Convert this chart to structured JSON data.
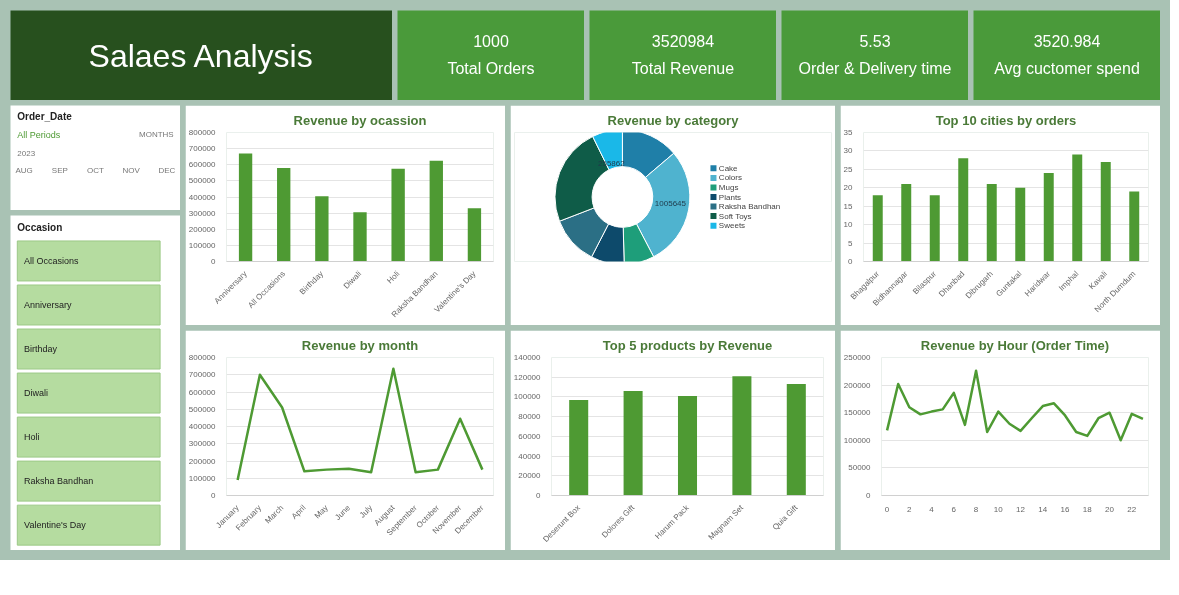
{
  "chart_data": [
    {
      "type": "other",
      "title": "Salaes Analysis"
    },
    {
      "type": "other",
      "title": "Total Orders",
      "annotations": [
        "1000"
      ]
    },
    {
      "type": "other",
      "title": "Total Revenue",
      "annotations": [
        "3520984"
      ]
    },
    {
      "type": "other",
      "title": "Order & Delivery time",
      "annotations": [
        "5.53"
      ]
    },
    {
      "type": "other",
      "title": "Avg cuctomer spend",
      "annotations": [
        "3520.984"
      ]
    },
    {
      "type": "other",
      "title": "Order_Date",
      "annotations": [
        "All Periods",
        "MONTHS",
        "2023",
        "AUG",
        "SEP",
        "OCT",
        "NOV",
        "DEC"
      ]
    },
    {
      "type": "other",
      "title": "Occasion",
      "annotations": [
        "All Occasions",
        "Anniversary",
        "Birthday",
        "Diwali",
        "Holi",
        "Raksha Bandhan",
        "Valentine's Day"
      ]
    },
    {
      "type": "bar",
      "title": "Revenue by ocassion",
      "categories": [
        "Anniversary",
        "All Occasions",
        "Birthday",
        "Diwali",
        "Holi",
        "Raksha Bandhan",
        "Valentine's Day"
      ],
      "values": [
        670000,
        580000,
        405000,
        305000,
        575000,
        625000,
        330000
      ],
      "color": "#4e9a33",
      "ylim": [
        0,
        800000
      ],
      "yticks": [
        0,
        100000,
        200000,
        300000,
        400000,
        500000,
        600000,
        700000,
        800000
      ],
      "grid": "y"
    },
    {
      "type": "donut",
      "title": "Revenue by category",
      "categories": [
        "Cake",
        "Colors",
        "Mugs",
        "Plants",
        "Raksha Bandhan",
        "Soft Toys",
        "Sweets"
      ],
      "values": [
        485000,
        1005645,
        255000,
        281000,
        408000,
        830000,
        255862
      ],
      "colors": [
        "#1f7fa8",
        "#4fb3cf",
        "#1e9e7a",
        "#0d4a6b",
        "#2b6f85",
        "#0f5c48",
        "#1ab8e8"
      ],
      "value_labels": [
        null,
        "1005645",
        null,
        null,
        null,
        null,
        "255862"
      ],
      "legend": "right"
    },
    {
      "type": "bar",
      "title": "Top 10 cities by orders",
      "categories": [
        "Bhagalpur",
        "Bidhannagar",
        "Bilaspur",
        "Dhanbad",
        "Dibrugarh",
        "Guntakal",
        "Haridwar",
        "Imphal",
        "Kavali",
        "North Dumdum"
      ],
      "values": [
        18,
        21,
        18,
        28,
        21,
        20,
        24,
        29,
        27,
        19
      ],
      "color": "#4e9a33",
      "ylim": [
        0,
        35
      ],
      "yticks": [
        0,
        5,
        10,
        15,
        20,
        25,
        30,
        35
      ],
      "grid": "y"
    },
    {
      "type": "line",
      "title": "Revenue by month",
      "categories": [
        "January",
        "February",
        "March",
        "April",
        "May",
        "June",
        "July",
        "August",
        "September",
        "October",
        "November",
        "December"
      ],
      "values": [
        90000,
        700000,
        510000,
        140000,
        150000,
        155000,
        135000,
        735000,
        135000,
        150000,
        445000,
        150000
      ],
      "color": "#4e9a33",
      "ylim": [
        0,
        800000
      ],
      "yticks": [
        0,
        100000,
        200000,
        300000,
        400000,
        500000,
        600000,
        700000,
        800000
      ],
      "grid": "y"
    },
    {
      "type": "bar",
      "title": "Top 5 products by Revenue",
      "categories": [
        "Deserunt Box",
        "Dolores Gift",
        "Harum Pack",
        "Magnam Set",
        "Quia Gift"
      ],
      "values": [
        97000,
        106000,
        101000,
        121000,
        113000
      ],
      "color": "#4e9a33",
      "ylim": [
        0,
        140000
      ],
      "yticks": [
        0,
        20000,
        40000,
        60000,
        80000,
        100000,
        120000,
        140000
      ],
      "grid": "y"
    },
    {
      "type": "line",
      "title": "Revenue by Hour (Order Time)",
      "x": [
        0,
        1,
        2,
        3,
        4,
        5,
        6,
        7,
        8,
        9,
        10,
        11,
        12,
        13,
        14,
        15,
        16,
        17,
        18,
        19,
        20,
        21,
        22,
        23
      ],
      "values": [
        118000,
        202000,
        160000,
        147000,
        152000,
        156000,
        186000,
        128000,
        226000,
        115000,
        152000,
        130000,
        117000,
        140000,
        162000,
        167000,
        145000,
        115000,
        108000,
        140000,
        150000,
        100000,
        148000,
        139000
      ],
      "color": "#4e9a33",
      "xlim": [
        -0.5,
        23.5
      ],
      "xticks": [
        0,
        2,
        4,
        6,
        8,
        10,
        12,
        14,
        16,
        18,
        20,
        22
      ],
      "ylim": [
        0,
        250000
      ],
      "yticks": [
        0,
        50000,
        100000,
        150000,
        200000,
        250000
      ],
      "grid": "y"
    }
  ]
}
